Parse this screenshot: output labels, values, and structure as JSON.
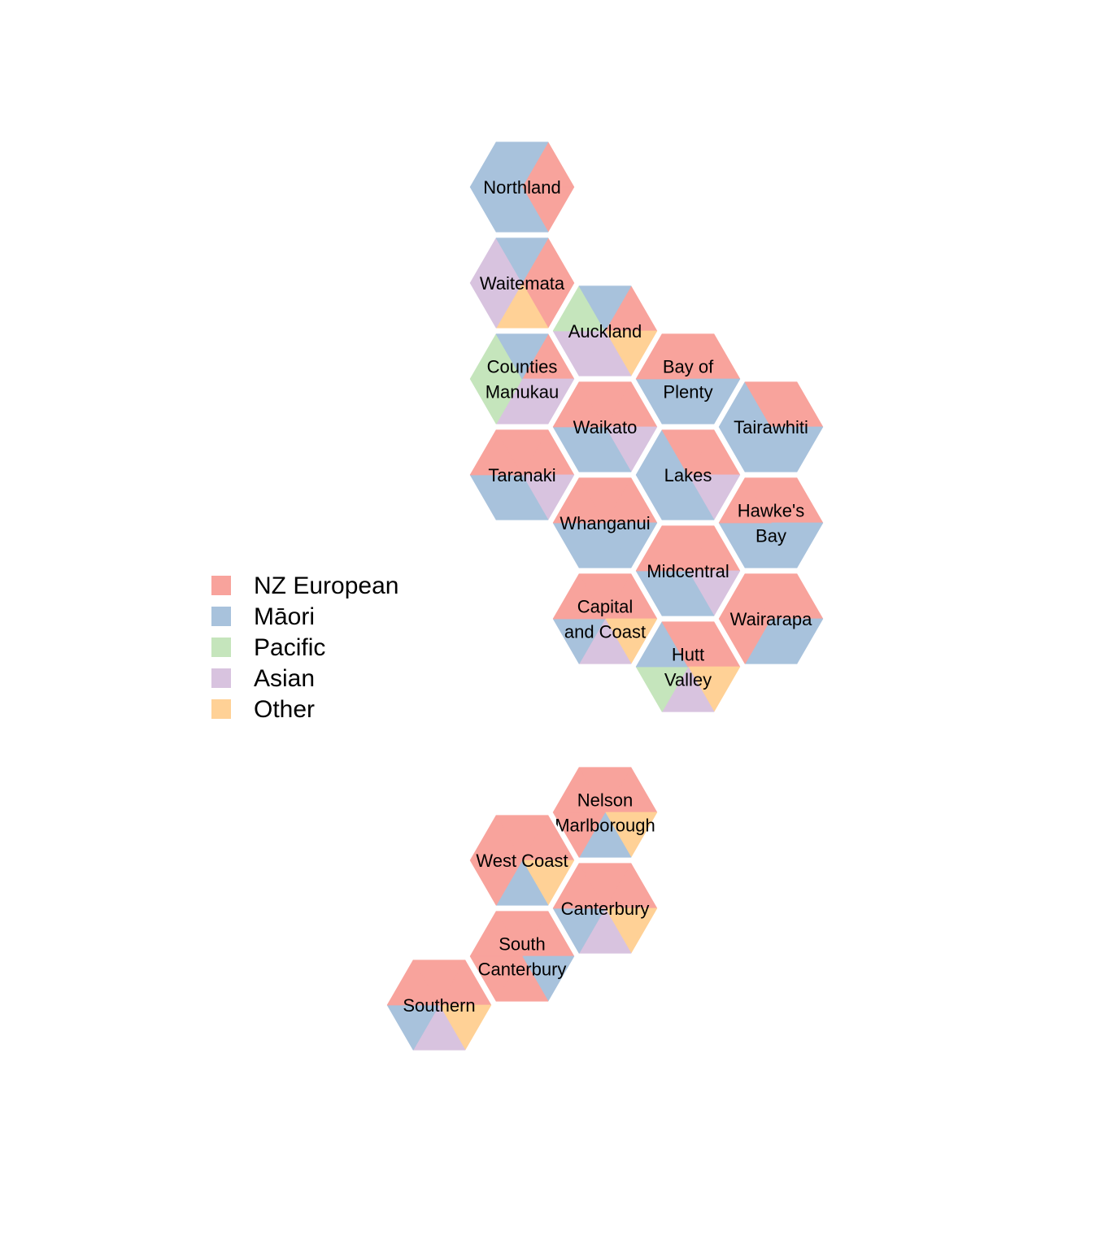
{
  "legend": {
    "items": [
      {
        "key": "nz_european",
        "label": "NZ European",
        "color": "#F8A39C"
      },
      {
        "key": "maori",
        "label": "Māori",
        "color": "#A8C2DC"
      },
      {
        "key": "pacific",
        "label": "Pacific",
        "color": "#C5E5BC"
      },
      {
        "key": "asian",
        "label": "Asian",
        "color": "#D8C3DF"
      },
      {
        "key": "other",
        "label": "Other",
        "color": "#FFD196"
      }
    ]
  },
  "regions": [
    {
      "id": "northland",
      "label_lines": [
        "Northland"
      ],
      "composition": [
        "nz_european",
        "nz_european",
        "maori",
        "maori",
        "maori",
        "maori"
      ]
    },
    {
      "id": "waitemata",
      "label_lines": [
        "Waitemata"
      ],
      "composition": [
        "nz_european",
        "nz_european",
        "other",
        "asian",
        "asian",
        "maori"
      ]
    },
    {
      "id": "auckland",
      "label_lines": [
        "Auckland"
      ],
      "composition": [
        "nz_european",
        "other",
        "asian",
        "asian",
        "pacific",
        "maori"
      ]
    },
    {
      "id": "counties-manukau",
      "label_lines": [
        "Counties",
        "Manukau"
      ],
      "composition": [
        "nz_european",
        "asian",
        "asian",
        "pacific",
        "pacific",
        "maori"
      ]
    },
    {
      "id": "bay-of-plenty",
      "label_lines": [
        "Bay of",
        "Plenty"
      ],
      "composition": [
        "nz_european",
        "maori",
        "maori",
        "maori",
        "nz_european",
        "nz_european"
      ]
    },
    {
      "id": "waikato",
      "label_lines": [
        "Waikato"
      ],
      "composition": [
        "nz_european",
        "asian",
        "maori",
        "maori",
        "nz_european",
        "nz_european"
      ]
    },
    {
      "id": "tairawhiti",
      "label_lines": [
        "Tairawhiti"
      ],
      "composition": [
        "nz_european",
        "maori",
        "maori",
        "maori",
        "maori",
        "nz_european"
      ]
    },
    {
      "id": "taranaki",
      "label_lines": [
        "Taranaki"
      ],
      "composition": [
        "nz_european",
        "asian",
        "maori",
        "maori",
        "nz_european",
        "nz_european"
      ]
    },
    {
      "id": "lakes",
      "label_lines": [
        "Lakes"
      ],
      "composition": [
        "nz_european",
        "asian",
        "maori",
        "maori",
        "maori",
        "nz_european"
      ]
    },
    {
      "id": "whanganui",
      "label_lines": [
        "Whanganui"
      ],
      "composition": [
        "nz_european",
        "maori",
        "maori",
        "maori",
        "nz_european",
        "nz_european"
      ]
    },
    {
      "id": "hawkes-bay",
      "label_lines": [
        "Hawke's",
        "Bay"
      ],
      "composition": [
        "nz_european",
        "maori",
        "maori",
        "maori",
        "nz_european",
        "nz_european"
      ]
    },
    {
      "id": "midcentral",
      "label_lines": [
        "Midcentral"
      ],
      "composition": [
        "nz_european",
        "asian",
        "maori",
        "maori",
        "nz_european",
        "nz_european"
      ]
    },
    {
      "id": "wairarapa",
      "label_lines": [
        "Wairarapa"
      ],
      "composition": [
        "nz_european",
        "maori",
        "maori",
        "nz_european",
        "nz_european",
        "nz_european"
      ]
    },
    {
      "id": "capital-and-coast",
      "label_lines": [
        "Capital",
        "and Coast"
      ],
      "composition": [
        "nz_european",
        "other",
        "asian",
        "maori",
        "nz_european",
        "nz_european"
      ]
    },
    {
      "id": "hutt-valley",
      "label_lines": [
        "Hutt",
        "Valley"
      ],
      "composition": [
        "nz_european",
        "other",
        "asian",
        "pacific",
        "maori",
        "nz_european"
      ]
    },
    {
      "id": "nelson-marlborough",
      "label_lines": [
        "Nelson",
        "Marlborough"
      ],
      "composition": [
        "nz_european",
        "other",
        "maori",
        "nz_european",
        "nz_european",
        "nz_european"
      ]
    },
    {
      "id": "west-coast",
      "label_lines": [
        "West Coast"
      ],
      "composition": [
        "nz_european",
        "other",
        "maori",
        "nz_european",
        "nz_european",
        "nz_european"
      ]
    },
    {
      "id": "canterbury",
      "label_lines": [
        "Canterbury"
      ],
      "composition": [
        "nz_european",
        "other",
        "asian",
        "maori",
        "nz_european",
        "nz_european"
      ]
    },
    {
      "id": "south-canterbury",
      "label_lines": [
        "South",
        "Canterbury"
      ],
      "composition": [
        "nz_european",
        "maori",
        "nz_european",
        "nz_european",
        "nz_european",
        "nz_european"
      ]
    },
    {
      "id": "southern",
      "label_lines": [
        "Southern"
      ],
      "composition": [
        "nz_european",
        "other",
        "asian",
        "maori",
        "nz_european",
        "nz_european"
      ]
    }
  ]
}
